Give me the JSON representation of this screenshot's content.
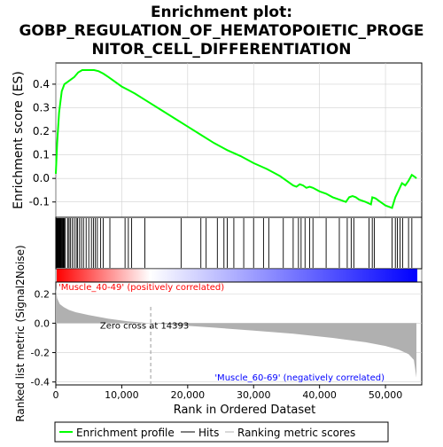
{
  "chart_data": {
    "type": "line",
    "title_lines": [
      "Enrichment plot:",
      "GOBP_REGULATION_OF_HEMATOPOIETIC_PROGE",
      "NITOR_CELL_DIFFERENTIATION"
    ],
    "colors": {
      "enrichment_line": "#00ff00",
      "hits": "#000000",
      "metric_fill": "#b0b0b0",
      "positive_label": "#ff0000",
      "negative_label": "#0000ff",
      "axis": "#000000",
      "grid": "#d0d0d0"
    },
    "es_panel": {
      "ylabel": "Enrichment score (ES)",
      "ylim": [
        -0.165,
        0.49
      ],
      "yticks": [
        -0.1,
        0.0,
        0.1,
        0.2,
        0.3,
        0.4
      ],
      "ytick_labels": [
        "-0.1",
        "0.0",
        "0.1",
        "0.2",
        "0.3",
        "0.4"
      ],
      "series": [
        {
          "x": [
            0,
            200,
            500,
            900,
            1300,
            1800,
            2300,
            2800,
            3400,
            4000,
            4600,
            5200,
            5800,
            6500,
            7200,
            8000,
            9000,
            10000,
            11000,
            12000,
            14000,
            16000,
            18000,
            20000,
            22000,
            24000,
            26000,
            28000,
            30000,
            32000,
            33000,
            34000,
            35000,
            36000,
            36500,
            37000,
            37500,
            38000,
            38500,
            39000,
            40000,
            41000,
            42000,
            43000,
            44000,
            44500,
            45000,
            45500,
            46000,
            47000,
            47800,
            48000,
            48500,
            49000,
            50000,
            51000,
            51500,
            52000,
            52500,
            53000,
            53500,
            54000,
            54500,
            54700
          ],
          "y": [
            0.02,
            0.15,
            0.28,
            0.37,
            0.4,
            0.41,
            0.42,
            0.43,
            0.45,
            0.46,
            0.46,
            0.46,
            0.46,
            0.455,
            0.445,
            0.43,
            0.41,
            0.39,
            0.375,
            0.36,
            0.325,
            0.29,
            0.255,
            0.22,
            0.185,
            0.15,
            0.12,
            0.095,
            0.065,
            0.04,
            0.025,
            0.01,
            -0.01,
            -0.03,
            -0.035,
            -0.025,
            -0.03,
            -0.04,
            -0.035,
            -0.04,
            -0.055,
            -0.065,
            -0.08,
            -0.09,
            -0.1,
            -0.08,
            -0.075,
            -0.08,
            -0.09,
            -0.1,
            -0.11,
            -0.08,
            -0.085,
            -0.095,
            -0.115,
            -0.125,
            -0.08,
            -0.05,
            -0.02,
            -0.03,
            -0.01,
            0.015,
            0.005,
            0.0
          ]
        }
      ]
    },
    "hits_panel": {
      "hit_positions": [
        60,
        120,
        180,
        250,
        320,
        400,
        480,
        560,
        640,
        720,
        800,
        900,
        1000,
        1100,
        1200,
        1300,
        1450,
        1800,
        2000,
        2200,
        2500,
        2800,
        3100,
        3300,
        3600,
        3900,
        4200,
        4600,
        5000,
        5400,
        5700,
        6000,
        6300,
        6800,
        7200,
        8200,
        10500,
        11000,
        11500,
        13500,
        19000,
        22000,
        22800,
        24500,
        25500,
        26000,
        27000,
        28500,
        30000,
        31500,
        32300,
        34500,
        36000,
        36800,
        37200,
        37800,
        38500,
        39000,
        41000,
        43000,
        44200,
        44800,
        45200,
        47500,
        48000,
        48300,
        51000,
        51500,
        51800,
        52200,
        52600,
        53500,
        54000
      ]
    },
    "rank_bar": {
      "colors_gradient": [
        "#ff0000",
        "#ffffff",
        "#0000ff"
      ]
    },
    "metric_panel": {
      "ylabel": "Ranked list metric (Signal2Noise)",
      "ylim": [
        -0.42,
        0.28
      ],
      "yticks": [
        -0.4,
        -0.2,
        0.0,
        0.2
      ],
      "ytick_labels": [
        "-0.4",
        "-0.2",
        "0.0",
        "0.2"
      ],
      "metric_profile": {
        "rank": [
          0,
          200,
          600,
          1200,
          2000,
          3000,
          5000,
          8000,
          11000,
          14393,
          18000,
          24000,
          30000,
          36000,
          42000,
          47000,
          50000,
          52000,
          53500,
          54300,
          54700
        ],
        "value": [
          0.24,
          0.17,
          0.13,
          0.11,
          0.09,
          0.075,
          0.055,
          0.03,
          0.012,
          0.0,
          -0.012,
          -0.03,
          -0.05,
          -0.072,
          -0.1,
          -0.13,
          -0.155,
          -0.18,
          -0.21,
          -0.25,
          -0.37
        ]
      },
      "zero_cross_label": "Zero cross at 14393",
      "zero_cross_rank": 14393,
      "positive_label": "'Muscle_40-49' (positively correlated)",
      "negative_label": "'Muscle_60-69' (negatively correlated)"
    },
    "x_axis": {
      "xlabel": "Rank in Ordered Dataset",
      "xlim": [
        0,
        55500
      ],
      "xticks": [
        0,
        10000,
        20000,
        30000,
        40000,
        50000
      ],
      "xtick_labels": [
        "0",
        "10,000",
        "20,000",
        "30,000",
        "40,000",
        "50,000"
      ]
    },
    "legend": {
      "position": "bottom",
      "entries": [
        {
          "label": "Enrichment profile",
          "kind": "line-green"
        },
        {
          "label": "Hits",
          "kind": "line-black"
        },
        {
          "label": "Ranking metric scores",
          "kind": "line-gray"
        }
      ]
    }
  }
}
